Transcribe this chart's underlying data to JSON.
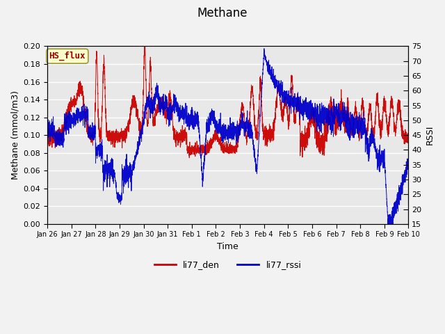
{
  "title": "Methane",
  "xlabel": "Time",
  "ylabel_left": "Methane (mmol/m3)",
  "ylabel_right": "RSSI",
  "ylim_left": [
    0.0,
    0.2
  ],
  "ylim_right": [
    15,
    75
  ],
  "yticks_left": [
    0.0,
    0.02,
    0.04,
    0.06,
    0.08,
    0.1,
    0.12,
    0.14,
    0.16,
    0.18,
    0.2
  ],
  "yticks_right": [
    15,
    20,
    25,
    30,
    35,
    40,
    45,
    50,
    55,
    60,
    65,
    70,
    75
  ],
  "xtick_labels": [
    "Jan 26",
    "Jan 27",
    "Jan 28",
    "Jan 29",
    "Jan 30",
    "Jan 31",
    "Feb 1",
    "Feb 2",
    "Feb 3",
    "Feb 4",
    "Feb 5",
    "Feb 6",
    "Feb 7",
    "Feb 8",
    "Feb 9",
    "Feb 10"
  ],
  "color_red": "#cc0000",
  "color_blue": "#0000cc",
  "legend_label_red": "li77_den",
  "legend_label_blue": "li77_rssi",
  "box_label": "HS_flux",
  "box_facecolor": "#ffffcc",
  "box_edgecolor": "#999933",
  "bg_color": "#e8e8e8",
  "grid_color": "#ffffff",
  "title_fontsize": 12,
  "axis_label_fontsize": 9,
  "tick_fontsize": 8,
  "legend_fontsize": 9,
  "fig_width": 6.4,
  "fig_height": 4.8,
  "dpi": 100
}
